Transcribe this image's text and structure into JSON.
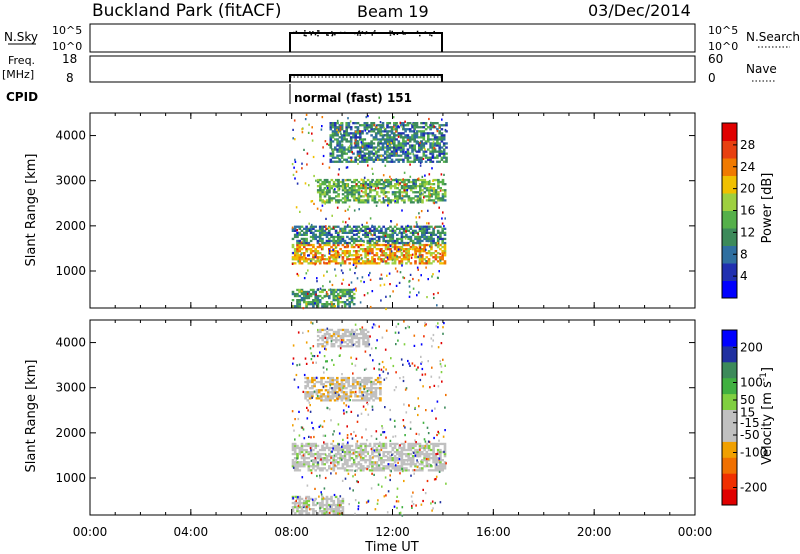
{
  "header": {
    "station": "Buckland Park (fitACF)",
    "beam": "Beam 19",
    "date": "03/Dec/2014"
  },
  "panels": {
    "nsky": {
      "left_label": "N.Sky",
      "ticks_left": [
        "10^5",
        "10^0"
      ],
      "ticks_right": [
        "10^5",
        "10^0"
      ],
      "right_label": "N.Search"
    },
    "freq": {
      "left_label_line1": "Freq.",
      "left_label_line2": "[MHz]",
      "ticks_left": [
        "18",
        "8"
      ],
      "ticks_right": [
        "60",
        "0"
      ],
      "right_label": "Nave"
    },
    "cpid": {
      "label": "CPID",
      "mode": "normal (fast) 151"
    }
  },
  "colors": {
    "power_scale": [
      "#0000ff",
      "#2030b0",
      "#2f6fa0",
      "#3c8a5a",
      "#55b04a",
      "#9ed040",
      "#f0c000",
      "#f07a00",
      "#e84010",
      "#e00000"
    ],
    "velocity_scale": [
      "#e00000",
      "#f03000",
      "#f07000",
      "#f0a000",
      "#c0c0c0",
      "#c0c0c0",
      "#80d040",
      "#40b040",
      "#3c8a5a",
      "#2030a0",
      "#0000ff"
    ]
  },
  "chart_data": [
    {
      "type": "heatmap",
      "name": "power",
      "ylabel": "Slant Range [km]",
      "yticks": [
        "4000",
        "3000",
        "2000",
        "1000"
      ],
      "ylim": [
        180,
        4500
      ],
      "xlim": [
        0,
        24
      ],
      "colorbar_label": "Power [dB]",
      "colorbar_ticks": [
        "28",
        "24",
        "20",
        "16",
        "12",
        "8",
        "4"
      ],
      "colorbar_range": [
        0,
        32
      ],
      "data_window_hours": [
        8,
        14.1
      ],
      "bands": [
        {
          "t0": 8.0,
          "t1": 14.1,
          "r0": 1150,
          "r1": 1600,
          "power": 22
        },
        {
          "t0": 8.0,
          "t1": 14.1,
          "r0": 1600,
          "r1": 2000,
          "power": 10
        },
        {
          "t0": 9.0,
          "t1": 14.1,
          "r0": 2500,
          "r1": 3000,
          "power": 14
        },
        {
          "t0": 9.5,
          "t1": 14.1,
          "r0": 3400,
          "r1": 4300,
          "power": 10
        },
        {
          "t0": 8.0,
          "t1": 10.5,
          "r0": 200,
          "r1": 600,
          "power": 12
        }
      ]
    },
    {
      "type": "heatmap",
      "name": "velocity",
      "ylabel": "Slant Range [km]",
      "yticks": [
        "4000",
        "3000",
        "2000",
        "1000"
      ],
      "ylim": [
        180,
        4500
      ],
      "xlim": [
        0,
        24
      ],
      "xlabel": "Time UT",
      "xticks": [
        "00:00",
        "04:00",
        "08:00",
        "12:00",
        "16:00",
        "20:00",
        "00:00"
      ],
      "colorbar_label": "Velocity [m s^-1]",
      "colorbar_ticks": [
        "200",
        "100",
        "50",
        "15",
        "-15",
        "-50",
        "-100",
        "-200"
      ],
      "colorbar_range": [
        -250,
        250
      ],
      "data_window_hours": [
        8,
        14.1
      ],
      "bands": [
        {
          "t0": 8.0,
          "t1": 14.1,
          "r0": 1150,
          "r1": 1750,
          "velocity": 0
        },
        {
          "t0": 8.5,
          "t1": 11.5,
          "r0": 2700,
          "r1": 3200,
          "velocity": -50
        },
        {
          "t0": 9.0,
          "t1": 11.0,
          "r0": 3900,
          "r1": 4300,
          "velocity": -40
        },
        {
          "t0": 8.0,
          "t1": 10.0,
          "r0": 200,
          "r1": 600,
          "velocity": 5
        }
      ]
    }
  ]
}
